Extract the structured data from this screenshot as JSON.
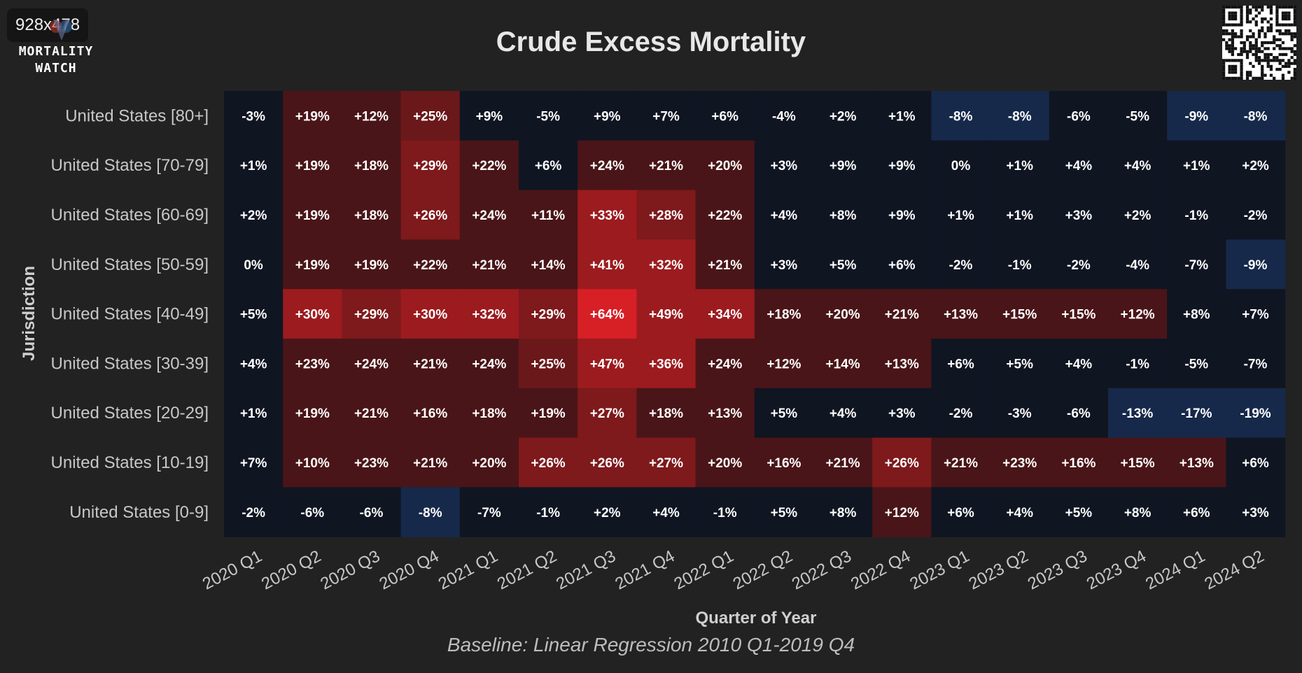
{
  "badge": "928x478",
  "logo": {
    "line1": "MORTALITY",
    "line2": "WATCH"
  },
  "chart_data": {
    "type": "heatmap",
    "title": "Crude Excess Mortality",
    "subtitle": "Baseline: Linear Regression 2010 Q1-2019 Q4",
    "xlabel": "Quarter of Year",
    "ylabel": "Jurisdiction",
    "x": [
      "2020 Q1",
      "2020 Q2",
      "2020 Q3",
      "2020 Q4",
      "2021 Q1",
      "2021 Q2",
      "2021 Q3",
      "2021 Q4",
      "2022 Q1",
      "2022 Q2",
      "2022 Q3",
      "2022 Q4",
      "2023 Q1",
      "2023 Q2",
      "2023 Q3",
      "2023 Q4",
      "2024 Q1",
      "2024 Q2"
    ],
    "y": [
      "United States [80+]",
      "United States [70-79]",
      "United States [60-69]",
      "United States [50-59]",
      "United States [40-49]",
      "United States [30-39]",
      "United States [20-29]",
      "United States [10-19]",
      "United States [0-9]"
    ],
    "unit": "%",
    "values": [
      [
        -3,
        19,
        12,
        25,
        9,
        -5,
        9,
        7,
        6,
        -4,
        2,
        1,
        -8,
        -8,
        -6,
        -5,
        -9,
        -8
      ],
      [
        1,
        19,
        18,
        29,
        22,
        6,
        24,
        21,
        20,
        3,
        9,
        9,
        0,
        1,
        4,
        4,
        1,
        2
      ],
      [
        2,
        19,
        18,
        26,
        24,
        11,
        33,
        28,
        22,
        4,
        8,
        9,
        1,
        1,
        3,
        2,
        -1,
        -2
      ],
      [
        0,
        19,
        19,
        22,
        21,
        14,
        41,
        32,
        21,
        3,
        5,
        6,
        -2,
        -1,
        -2,
        -4,
        -7,
        -9
      ],
      [
        5,
        30,
        29,
        30,
        32,
        29,
        64,
        49,
        34,
        18,
        20,
        21,
        13,
        15,
        15,
        12,
        8,
        7
      ],
      [
        4,
        23,
        24,
        21,
        24,
        25,
        47,
        36,
        24,
        12,
        14,
        13,
        6,
        5,
        4,
        -1,
        -5,
        -7
      ],
      [
        1,
        19,
        21,
        16,
        18,
        19,
        27,
        18,
        13,
        5,
        4,
        3,
        -2,
        -3,
        -6,
        -13,
        -17,
        -19
      ],
      [
        7,
        10,
        23,
        21,
        20,
        26,
        26,
        27,
        20,
        16,
        21,
        26,
        21,
        23,
        16,
        15,
        13,
        6
      ],
      [
        -2,
        -6,
        -6,
        -8,
        -7,
        -1,
        2,
        4,
        -1,
        5,
        8,
        12,
        6,
        4,
        5,
        8,
        6,
        3
      ]
    ],
    "colors": {
      "neutral": "#101522",
      "red1": "#4a1518",
      "red2": "#6b181b",
      "red3": "#7e191c",
      "red4": "#9c1b1f",
      "red5": "#d71f26",
      "blue1": "#16294a"
    }
  }
}
